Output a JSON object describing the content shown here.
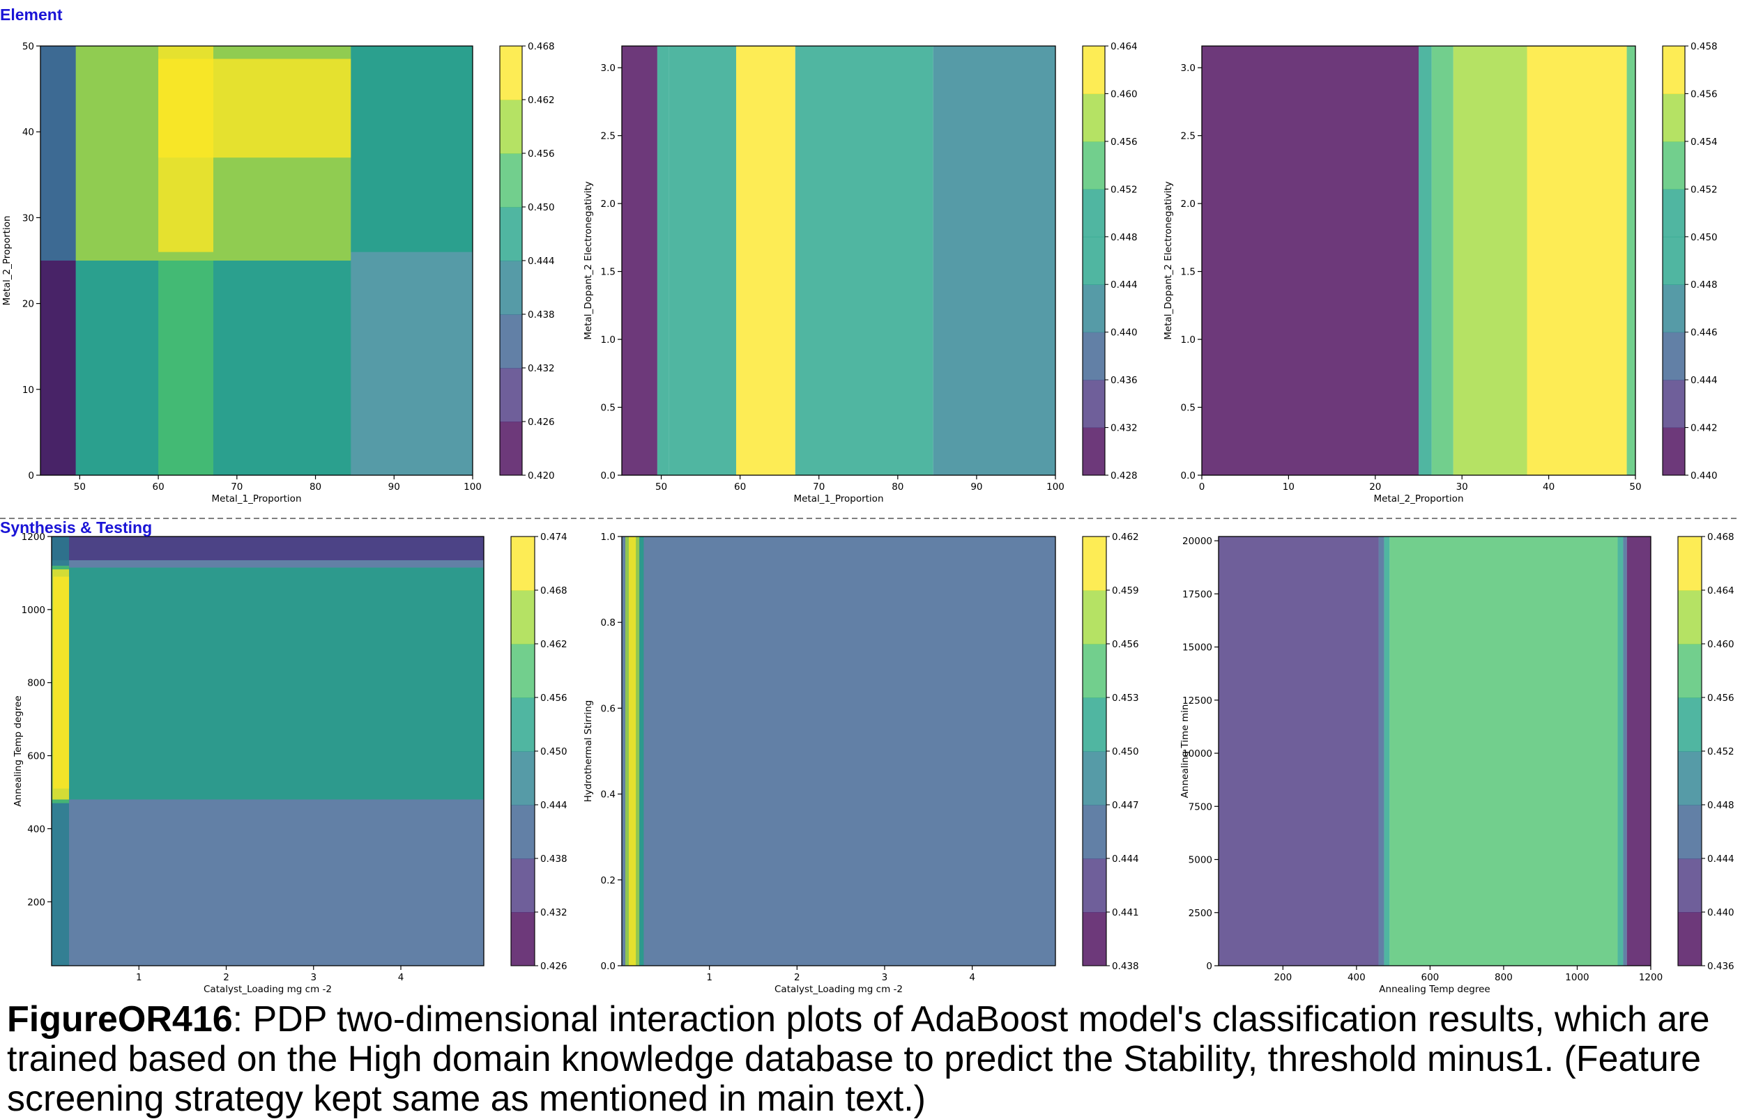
{
  "sections": {
    "element": "Element",
    "synthesis": "Synthesis & Testing"
  },
  "caption": {
    "figure_id": "FigureOR416",
    "text": ": PDP two-dimensional interaction plots of AdaBoost model's classification results, which are trained based on the High domain knowledge database to predict the Stability, threshold minus1. (Feature screening strategy kept same as mentioned in main text.)"
  },
  "colors": {
    "viridis": [
      "#440154",
      "#46327e",
      "#365c8d",
      "#277f8e",
      "#1fa187",
      "#4ac16d",
      "#a0da39",
      "#fde725"
    ],
    "divider": "#555555",
    "section_label": "#1a14d6"
  },
  "chart_data": [
    {
      "type": "heatmap",
      "section": "Element",
      "xlabel": "Metal_1_Proportion",
      "ylabel": "Metal_2_Proportion",
      "xlim": [
        45,
        100
      ],
      "ylim": [
        0,
        50
      ],
      "xticks": [
        50,
        60,
        70,
        80,
        90,
        100
      ],
      "yticks": [
        0,
        10,
        20,
        30,
        40,
        50
      ],
      "colorbar": [
        0.42,
        0.426,
        0.432,
        0.438,
        0.444,
        0.45,
        0.456,
        0.462,
        0.468
      ],
      "regions": [
        {
          "x": [
            45,
            100
          ],
          "y": [
            0,
            50
          ],
          "level": 3
        },
        {
          "x": [
            45,
            49.5
          ],
          "y": [
            0,
            25
          ],
          "level": 0
        },
        {
          "x": [
            45,
            49.5
          ],
          "y": [
            25,
            50
          ],
          "level": 2
        },
        {
          "x": [
            49.5,
            84.5
          ],
          "y": [
            0,
            25
          ],
          "level": 4
        },
        {
          "x": [
            84.5,
            100
          ],
          "y": [
            26,
            50
          ],
          "level": 4
        },
        {
          "x": [
            60,
            67
          ],
          "y": [
            0,
            25
          ],
          "level": 5
        },
        {
          "x": [
            49.5,
            84.5
          ],
          "y": [
            25,
            50
          ],
          "level": 6
        },
        {
          "x": [
            60,
            84.5
          ],
          "y": [
            37,
            48.5
          ],
          "level": 7
        },
        {
          "x": [
            60,
            67
          ],
          "y": [
            26,
            50
          ],
          "level": 7
        }
      ]
    },
    {
      "type": "heatmap",
      "section": "Element",
      "xlabel": "Metal_1_Proportion",
      "ylabel": "Metal_Dopant_2 Electronegativity",
      "xlim": [
        45,
        100
      ],
      "ylim": [
        0,
        3.16
      ],
      "xticks": [
        50,
        60,
        70,
        80,
        90,
        100
      ],
      "yticks": [
        0.0,
        0.5,
        1.0,
        1.5,
        2.0,
        2.5,
        3.0
      ],
      "colorbar": [
        0.428,
        0.432,
        0.436,
        0.44,
        0.444,
        0.448,
        0.452,
        0.456,
        0.46,
        0.464
      ],
      "regions": [
        {
          "x": [
            45,
            49.5
          ],
          "y": [
            0,
            3.16
          ],
          "level": 0
        },
        {
          "x": [
            49.5,
            51
          ],
          "y": [
            0,
            3.16
          ],
          "level": 4
        },
        {
          "x": [
            51,
            59.5
          ],
          "y": [
            0,
            3.16
          ],
          "level": 5
        },
        {
          "x": [
            59.5,
            67
          ],
          "y": [
            0,
            3.16
          ],
          "level": 8
        },
        {
          "x": [
            67,
            84.5
          ],
          "y": [
            0,
            3.16
          ],
          "level": 5
        },
        {
          "x": [
            84.5,
            100
          ],
          "y": [
            0,
            3.16
          ],
          "level": 3
        }
      ]
    },
    {
      "type": "heatmap",
      "section": "Element",
      "xlabel": "Metal_2_Proportion",
      "ylabel": "Metal_Dopant_2 Electronegativity",
      "xlim": [
        0,
        50
      ],
      "ylim": [
        0,
        3.16
      ],
      "xticks": [
        0,
        10,
        20,
        30,
        40,
        50
      ],
      "yticks": [
        0.0,
        0.5,
        1.0,
        1.5,
        2.0,
        2.5,
        3.0
      ],
      "colorbar": [
        0.44,
        0.442,
        0.444,
        0.446,
        0.448,
        0.45,
        0.452,
        0.454,
        0.456,
        0.458
      ],
      "regions": [
        {
          "x": [
            0,
            25
          ],
          "y": [
            0,
            3.16
          ],
          "level": 0
        },
        {
          "x": [
            25,
            26.5
          ],
          "y": [
            0,
            3.16
          ],
          "level": 5
        },
        {
          "x": [
            26.5,
            29
          ],
          "y": [
            0,
            3.16
          ],
          "level": 6
        },
        {
          "x": [
            29,
            37.5
          ],
          "y": [
            0,
            3.16
          ],
          "level": 7
        },
        {
          "x": [
            37.5,
            49
          ],
          "y": [
            0,
            3.16
          ],
          "level": 8
        },
        {
          "x": [
            49,
            50
          ],
          "y": [
            0,
            3.16
          ],
          "level": 6
        }
      ]
    },
    {
      "type": "heatmap",
      "section": "Synthesis & Testing",
      "xlabel": "Catalyst_Loading mg cm -2",
      "ylabel": "Annealing Temp degree",
      "xlim": [
        0,
        4.95
      ],
      "ylim": [
        25,
        1200
      ],
      "xticks": [
        1,
        2,
        3,
        4
      ],
      "yticks": [
        200,
        400,
        600,
        800,
        1000,
        1200
      ],
      "colorbar": [
        0.426,
        0.432,
        0.438,
        0.444,
        0.45,
        0.456,
        0.462,
        0.468,
        0.474
      ],
      "regions": [
        {
          "x": [
            0,
            4.95
          ],
          "y": [
            25,
            1200
          ],
          "level": 2
        },
        {
          "x": [
            0,
            4.95
          ],
          "y": [
            1135,
            1200
          ],
          "level": 1
        },
        {
          "x": [
            0,
            4.95
          ],
          "y": [
            480,
            1115
          ],
          "level": 4
        },
        {
          "x": [
            0,
            0.2
          ],
          "y": [
            25,
            1200
          ],
          "level": 3
        },
        {
          "x": [
            0,
            0.2
          ],
          "y": [
            470,
            1120
          ],
          "level": 5
        },
        {
          "x": [
            0.01,
            0.2
          ],
          "y": [
            480,
            1110
          ],
          "level": 7
        },
        {
          "x": [
            0.02,
            0.2
          ],
          "y": [
            510,
            1090
          ],
          "level": 8
        }
      ]
    },
    {
      "type": "heatmap",
      "section": "Synthesis & Testing",
      "xlabel": "Catalyst_Loading mg cm -2",
      "ylabel": "Hydrothermal Stirring",
      "xlim": [
        0,
        4.95
      ],
      "ylim": [
        0,
        1.0
      ],
      "xticks": [
        1,
        2,
        3,
        4
      ],
      "yticks": [
        0.0,
        0.2,
        0.4,
        0.6,
        0.8,
        1.0
      ],
      "colorbar": [
        0.438,
        0.441,
        0.444,
        0.447,
        0.45,
        0.453,
        0.456,
        0.459,
        0.462
      ],
      "regions": [
        {
          "x": [
            0,
            4.95
          ],
          "y": [
            0,
            1.0
          ],
          "level": 2
        },
        {
          "x": [
            0.04,
            0.2
          ],
          "y": [
            0,
            1.0
          ],
          "level": 6
        },
        {
          "x": [
            0.08,
            0.16
          ],
          "y": [
            0,
            1.0
          ],
          "level": 7
        },
        {
          "x": [
            0.2,
            0.25
          ],
          "y": [
            0,
            1.0
          ],
          "level": 4
        }
      ]
    },
    {
      "type": "heatmap",
      "section": "Synthesis & Testing",
      "xlabel": "Annealing Temp degree",
      "ylabel": "Annealing Time min",
      "xlim": [
        25,
        1200
      ],
      "ylim": [
        0,
        20200
      ],
      "xticks": [
        200,
        400,
        600,
        800,
        1000,
        1200
      ],
      "yticks": [
        0,
        2500,
        5000,
        7500,
        10000,
        12500,
        15000,
        17500,
        20000
      ],
      "colorbar": [
        0.436,
        0.44,
        0.444,
        0.448,
        0.452,
        0.456,
        0.46,
        0.464,
        0.468
      ],
      "regions": [
        {
          "x": [
            25,
            460
          ],
          "y": [
            0,
            20200
          ],
          "level": 1
        },
        {
          "x": [
            460,
            475
          ],
          "y": [
            0,
            20200
          ],
          "level": 2
        },
        {
          "x": [
            475,
            490
          ],
          "y": [
            0,
            20200
          ],
          "level": 4
        },
        {
          "x": [
            490,
            1110
          ],
          "y": [
            0,
            20200
          ],
          "level": 5
        },
        {
          "x": [
            1110,
            1125
          ],
          "y": [
            0,
            20200
          ],
          "level": 4
        },
        {
          "x": [
            1125,
            1135
          ],
          "y": [
            0,
            20200
          ],
          "level": 2
        },
        {
          "x": [
            1135,
            1200
          ],
          "y": [
            0,
            20200
          ],
          "level": 0
        }
      ]
    }
  ]
}
